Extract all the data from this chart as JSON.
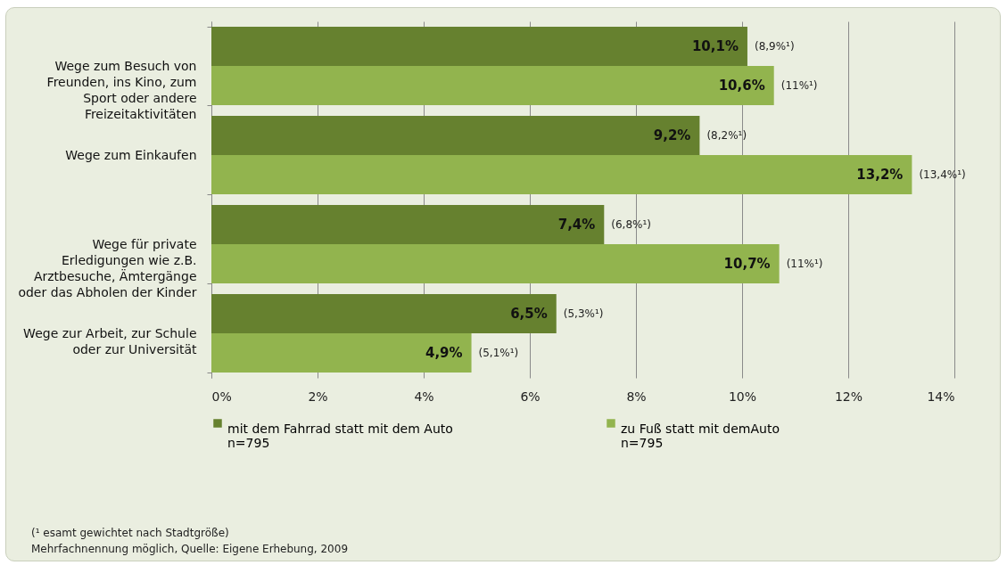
{
  "chart_data": {
    "type": "bar",
    "orientation": "horizontal",
    "categories": [
      "Wege zum Besuch von Freunden, ins Kino, zum Sport oder andere Freizeitaktivitäten",
      "Wege zum Einkaufen",
      "Wege für private Erledigungen wie z.B. Arztbesuche, Ämtergänge oder das Abholen der Kinder",
      "Wege zur Arbeit, zur Schule oder zur Universität"
    ],
    "series": [
      {
        "name": "mit dem Fahrrad statt mit dem Auto\nn=795",
        "color": "#66812f",
        "values": [
          10.1,
          9.2,
          7.4,
          6.5
        ],
        "value_labels": [
          "10,1%",
          "9,2%",
          "7,4%",
          "6,5%"
        ]
      },
      {
        "name": "zu Fuß statt mit demAuto\nn=795",
        "color": "#92b44e",
        "values": [
          10.6,
          13.2,
          10.7,
          4.9
        ],
        "value_labels": [
          "10,6%",
          "13,2%",
          "10,7%",
          "4,9%"
        ]
      }
    ],
    "xlim": [
      0,
      14
    ],
    "xticks": [
      {
        "value": 0,
        "label": "0%"
      },
      {
        "value": 2,
        "label": "2%"
      },
      {
        "value": 4,
        "label": "4%"
      },
      {
        "value": 6,
        "label": "6%"
      },
      {
        "value": 8,
        "label": "8%"
      },
      {
        "value": 10,
        "label": "10%"
      },
      {
        "value": 12,
        "label": "12%"
      },
      {
        "value": 14,
        "label": "14%"
      }
    ],
    "grid": "x",
    "legend": "bottom",
    "annotations": [
      "(8,9%¹)",
      "(11%¹)",
      "(8,2%¹)",
      "(13,4%¹)",
      "(6,8%¹)",
      "(11%¹)",
      "(5,3%¹)",
      "(5,1%¹)",
      "(¹ esamt gewichtet nach Stadtgröße)",
      "Mehrfachnennung möglich, Quelle: Eigene Erhebung, 2009"
    ]
  }
}
